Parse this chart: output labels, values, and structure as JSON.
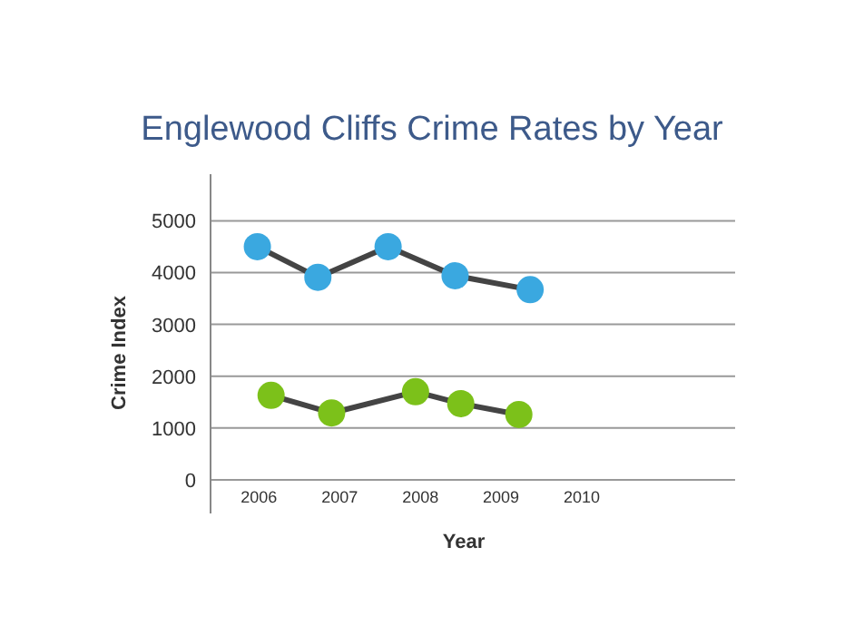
{
  "chart_data": {
    "type": "line",
    "title": "Englewood Cliffs Crime Rates by Year",
    "xlabel": "Year",
    "ylabel": "Crime Index",
    "xlim": [
      2005.4,
      2011.9
    ],
    "xticks": [
      2006,
      2007,
      2008,
      2009,
      2010
    ],
    "ylim": [
      -650,
      5900
    ],
    "yticks": [
      0,
      1000,
      2000,
      3000,
      4000,
      5000
    ],
    "grid": "y",
    "marker": "circle",
    "line_style": "solid",
    "series": [
      {
        "color": "#3aa8e0",
        "x": [
          2005.98,
          2006.73,
          2007.6,
          2008.43,
          2009.36
        ],
        "values": [
          4500,
          3910,
          4500,
          3940,
          3670
        ]
      },
      {
        "color": "#7cc11a",
        "x": [
          2006.15,
          2006.9,
          2007.94,
          2008.5,
          2009.22
        ],
        "values": [
          1630,
          1290,
          1700,
          1470,
          1260
        ]
      }
    ]
  }
}
